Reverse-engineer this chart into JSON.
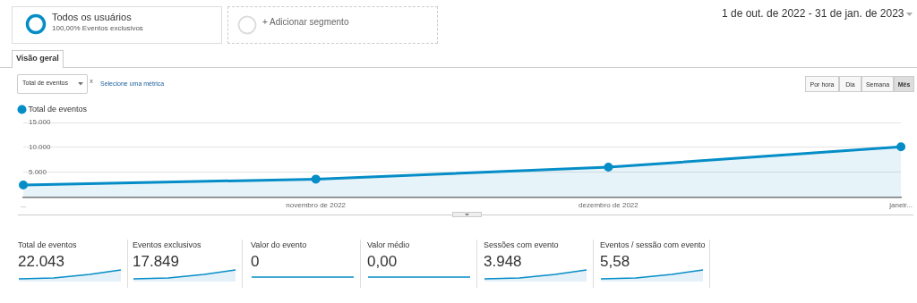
{
  "chart_data": {
    "type": "area",
    "categories": [
      "...",
      "novembro de 2022",
      "dezembro de 2022",
      "janeir..."
    ],
    "series": [
      {
        "name": "Total de eventos",
        "color": "#058dc7",
        "values": [
          2400,
          3600,
          6000,
          10100
        ]
      }
    ],
    "ylim": [
      0,
      15000
    ],
    "yticks": [
      {
        "value": 5000,
        "label": "5.000"
      },
      {
        "value": 10000,
        "label": "10.000"
      },
      {
        "value": 15000,
        "label": "15.000"
      }
    ],
    "grid": "y",
    "legend": "top left",
    "marker": "circle",
    "annotations": [
      "Todos os usuários",
      "100,00% Eventos exclusivos",
      "+ Adicionar segmento",
      "1 de out. de 2022 - 31 de jan. de 2023",
      "Visão geral",
      "Total de eventos",
      "x",
      "Selecione uma métrica",
      "Por hora",
      "Dia",
      "Semana",
      "Mês",
      "Total de eventos",
      "22.043",
      "Eventos exclusivos",
      "17.849",
      "Valor do evento",
      "0",
      "Valor médio",
      "0,00",
      "Sessões com evento",
      "3.948",
      "Eventos / sessão com evento",
      "5,58"
    ]
  }
}
